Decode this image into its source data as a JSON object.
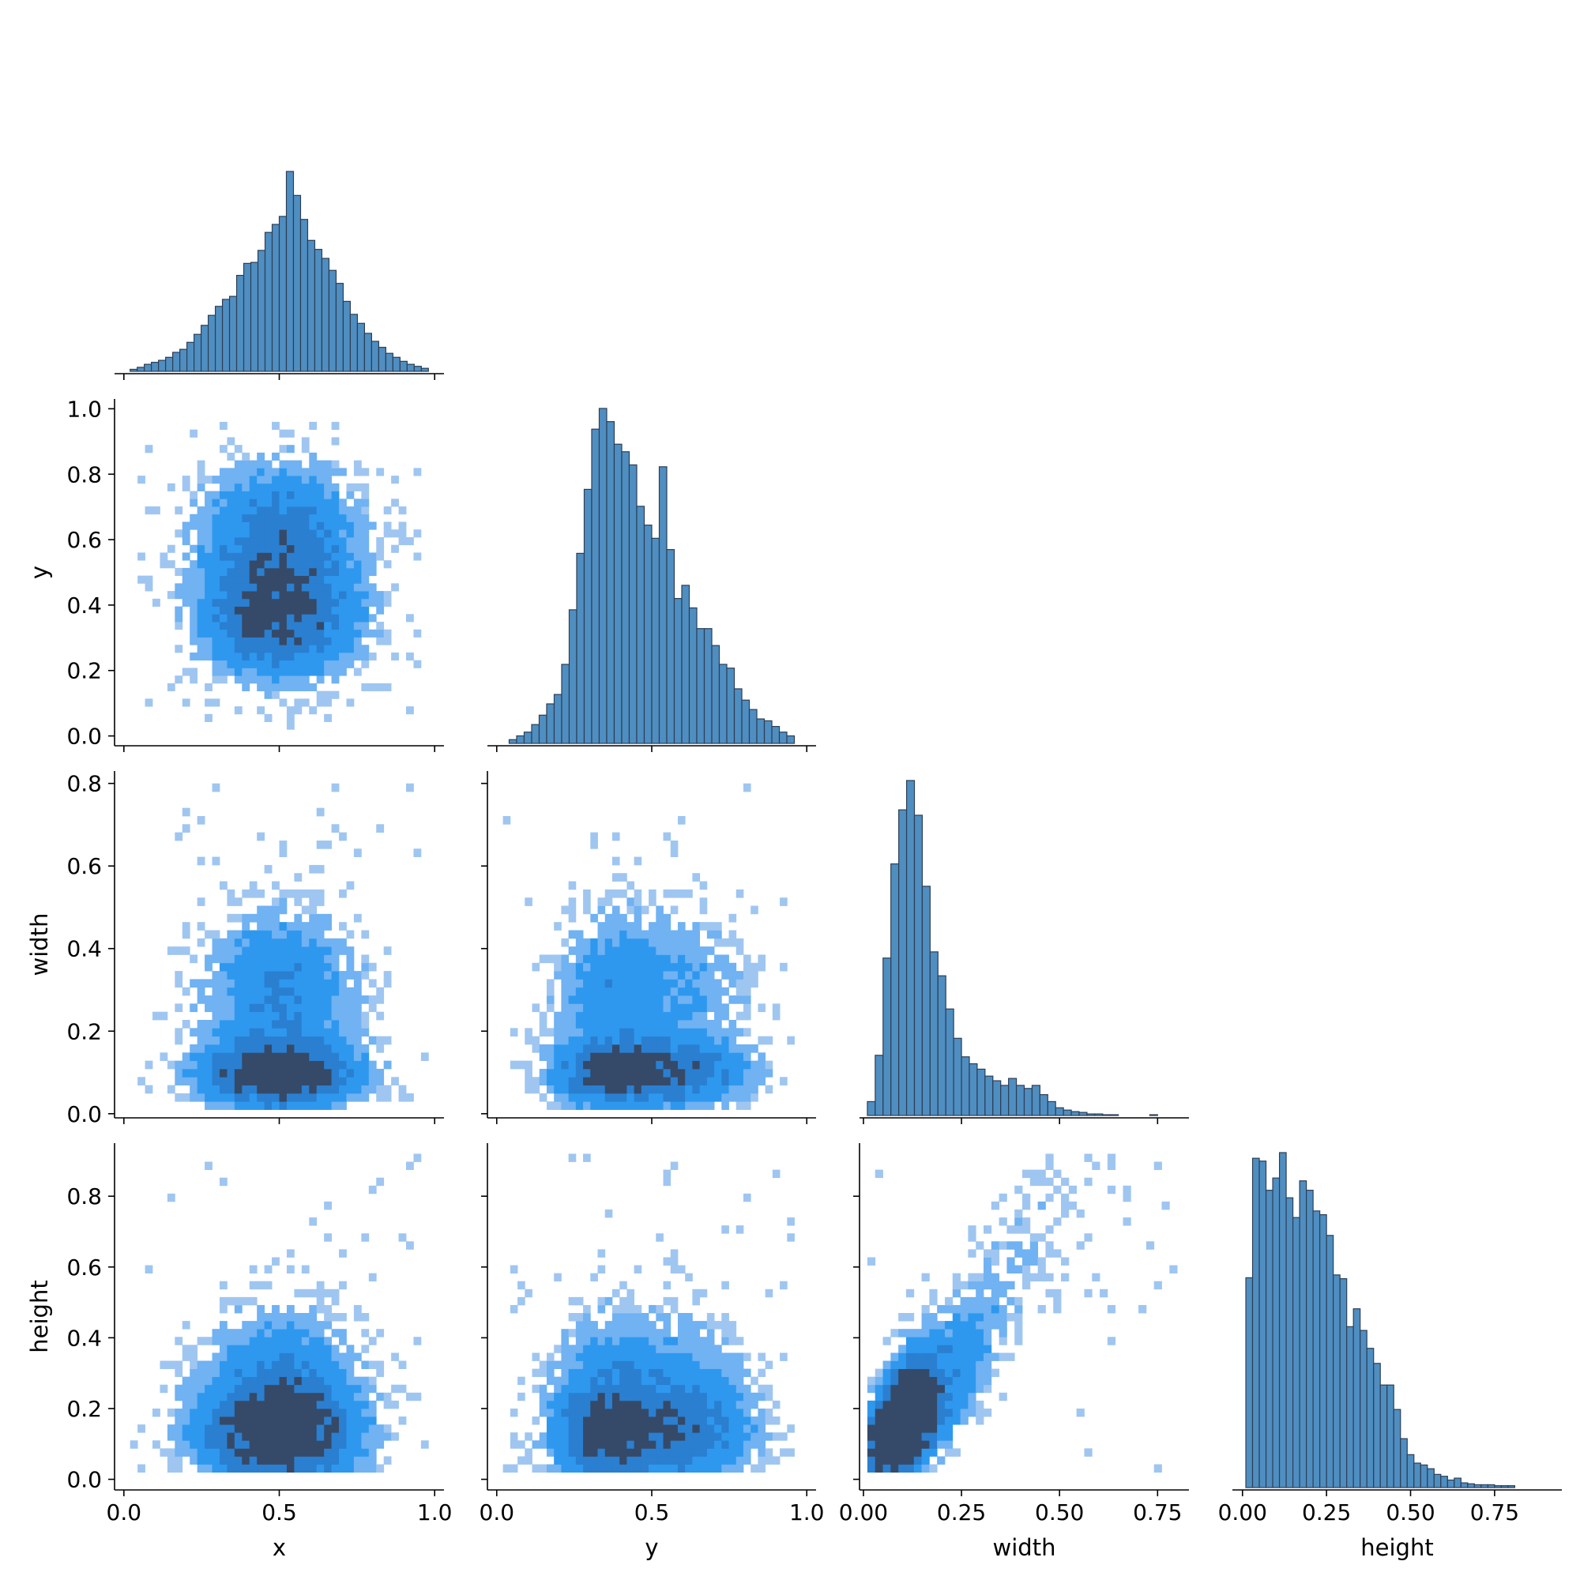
{
  "colors": {
    "bar_fill": "#4f8ec1",
    "bar_edge": "#2d3e55",
    "density_low": "#9fc6f0",
    "density_mid": "#2e98ef",
    "density_high": "#354a68",
    "axis": "#000000"
  },
  "chart_data": {
    "type": "pairplot",
    "variables": [
      "x",
      "y",
      "width",
      "height"
    ],
    "layout": "corner",
    "diag_kind": "hist",
    "off_diag_kind": "hist2d",
    "axis_labels": {
      "x": "x",
      "y": "y",
      "width": "width",
      "height": "height"
    },
    "ranges": {
      "x": [
        -0.03,
        1.03
      ],
      "y": [
        -0.03,
        1.03
      ],
      "width": [
        -0.01,
        0.83
      ],
      "height": [
        -0.03,
        0.95
      ]
    },
    "ticks": {
      "x": [
        0.0,
        0.5,
        1.0
      ],
      "y": [
        0.0,
        0.5,
        1.0
      ],
      "width": [
        0.0,
        0.25,
        0.5,
        0.75
      ],
      "height": [
        0.0,
        0.25,
        0.5,
        0.75
      ]
    },
    "row_ticks": {
      "y": [
        0.0,
        0.2,
        0.4,
        0.6,
        0.8,
        1.0
      ],
      "width": [
        0.0,
        0.2,
        0.4,
        0.6,
        0.8
      ],
      "height": [
        0.0,
        0.2,
        0.4,
        0.6,
        0.8
      ]
    },
    "tick_labels": {
      "x": [
        "0.0",
        "0.5",
        "1.0"
      ],
      "y": [
        "0.0",
        "0.5",
        "1.0"
      ],
      "width": [
        "0.00",
        "0.25",
        "0.50",
        "0.75"
      ],
      "height": [
        "0.00",
        "0.25",
        "0.50",
        "0.75"
      ]
    },
    "row_tick_labels": {
      "y": [
        "0.0",
        "0.2",
        "0.4",
        "0.6",
        "0.8",
        "1.0"
      ],
      "width": [
        "0.0",
        "0.2",
        "0.4",
        "0.6",
        "0.8"
      ],
      "height": [
        "0.0",
        "0.2",
        "0.4",
        "0.6",
        "0.8"
      ]
    },
    "histograms": {
      "x": {
        "range": [
          0.02,
          0.98
        ],
        "counts": [
          2,
          4,
          7,
          9,
          11,
          14,
          19,
          22,
          29,
          37,
          46,
          56,
          65,
          72,
          75,
          96,
          108,
          109,
          121,
          139,
          147,
          155,
          200,
          176,
          152,
          131,
          122,
          113,
          101,
          88,
          70,
          57,
          48,
          38,
          30,
          24,
          18,
          14,
          10,
          7,
          5,
          3
        ]
      },
      "y": {
        "range": [
          0.04,
          0.96
        ],
        "counts": [
          2,
          4,
          6,
          10,
          15,
          21,
          26,
          42,
          71,
          101,
          135,
          167,
          178,
          171,
          159,
          155,
          148,
          126,
          116,
          109,
          147,
          103,
          77,
          84,
          72,
          61,
          61,
          52,
          42,
          40,
          29,
          23,
          18,
          13,
          12,
          9,
          6,
          4
        ]
      },
      "width": {
        "range": [
          0.01,
          0.81
        ],
        "counts": [
          18,
          78,
          204,
          326,
          396,
          434,
          389,
          297,
          212,
          181,
          138,
          100,
          76,
          67,
          60,
          51,
          45,
          39,
          48,
          39,
          35,
          39,
          27,
          18,
          10,
          7,
          5,
          4,
          2,
          2,
          1,
          1,
          0,
          0,
          0,
          0,
          1,
          0,
          0,
          0
        ]
      },
      "height": {
        "range": [
          0.01,
          0.81
        ],
        "counts": [
          223,
          350,
          347,
          316,
          329,
          356,
          308,
          287,
          326,
          316,
          294,
          290,
          268,
          226,
          222,
          171,
          190,
          167,
          148,
          132,
          109,
          109,
          83,
          52,
          35,
          26,
          24,
          20,
          14,
          12,
          8,
          10,
          5,
          4,
          3,
          3,
          3,
          2,
          2,
          2
        ]
      }
    },
    "density_notes": "2D histograms show the densest cells around x 0.5 with y 0.4 and width 0.1; y vs width shows a dense core near y 0.35, width 0.1; width vs height shows a positive linear trend near the origin."
  }
}
